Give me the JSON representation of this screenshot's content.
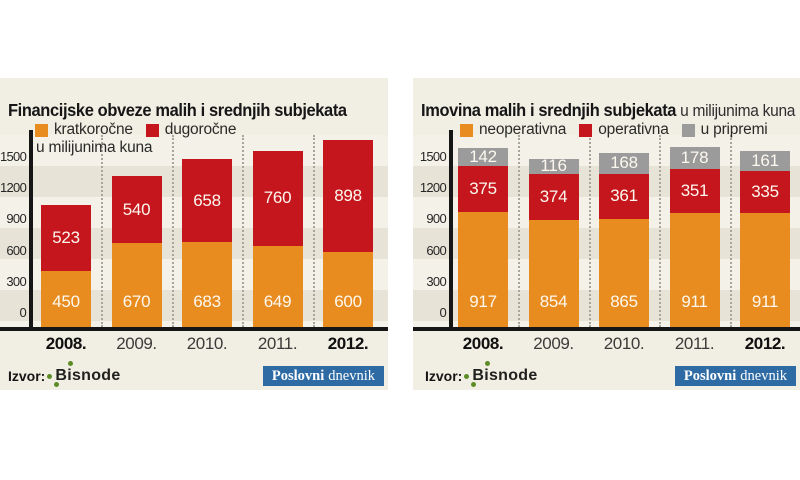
{
  "source": {
    "label": "Izvor:",
    "name": "Bisnode",
    "dot_color": "#5d8c26"
  },
  "brand": {
    "poslovni": "Poslovni",
    "dnevnik": "dnevnik",
    "badge_bg": "#2e6ba4"
  },
  "colors": {
    "panel_background": "#f1eee4",
    "stripe_light": "#f4f1e8",
    "stripe_dark": "#e7e3d6",
    "axis": "#161616",
    "orange": "#e88c1f",
    "red": "#c5161d",
    "gray": "#9b9b9b",
    "value_text": "#fcf8ef"
  },
  "chart_data": [
    {
      "type": "bar",
      "stacked": true,
      "title": "Financijske obveze malih i srednjih subjekata",
      "title_suffix": "",
      "unit_note": "u milijunima kuna",
      "legend_position": "top",
      "grid": "horizontal-bands",
      "ylim": [
        0,
        1600
      ],
      "yticks": [
        0,
        300,
        600,
        900,
        1200,
        1500
      ],
      "categories": [
        "2008.",
        "2009.",
        "2010.",
        "2011.",
        "2012."
      ],
      "emphasized_categories": [
        "2008.",
        "2012."
      ],
      "series": [
        {
          "name": "kratkoročne",
          "color": "#e88c1f",
          "values": [
            450,
            670,
            683,
            649,
            600
          ]
        },
        {
          "name": "dugoročne",
          "color": "#c5161d",
          "values": [
            523,
            540,
            658,
            760,
            898
          ]
        }
      ]
    },
    {
      "type": "bar",
      "stacked": true,
      "title": "Imovina malih i srednjih subjekata",
      "title_suffix": "u milijunima kuna",
      "unit_note": "",
      "legend_position": "top",
      "grid": "horizontal-bands",
      "ylim": [
        0,
        1600
      ],
      "yticks": [
        0,
        300,
        600,
        900,
        1200,
        1500
      ],
      "categories": [
        "2008.",
        "2009.",
        "2010.",
        "2011.",
        "2012."
      ],
      "emphasized_categories": [
        "2008.",
        "2012."
      ],
      "series": [
        {
          "name": "neoperativna",
          "color": "#e88c1f",
          "values": [
            917,
            854,
            865,
            911,
            911
          ]
        },
        {
          "name": "operativna",
          "color": "#c5161d",
          "values": [
            375,
            374,
            361,
            351,
            335
          ]
        },
        {
          "name": "u pripremi",
          "color": "#9b9b9b",
          "values": [
            142,
            116,
            168,
            178,
            161
          ]
        }
      ]
    }
  ]
}
